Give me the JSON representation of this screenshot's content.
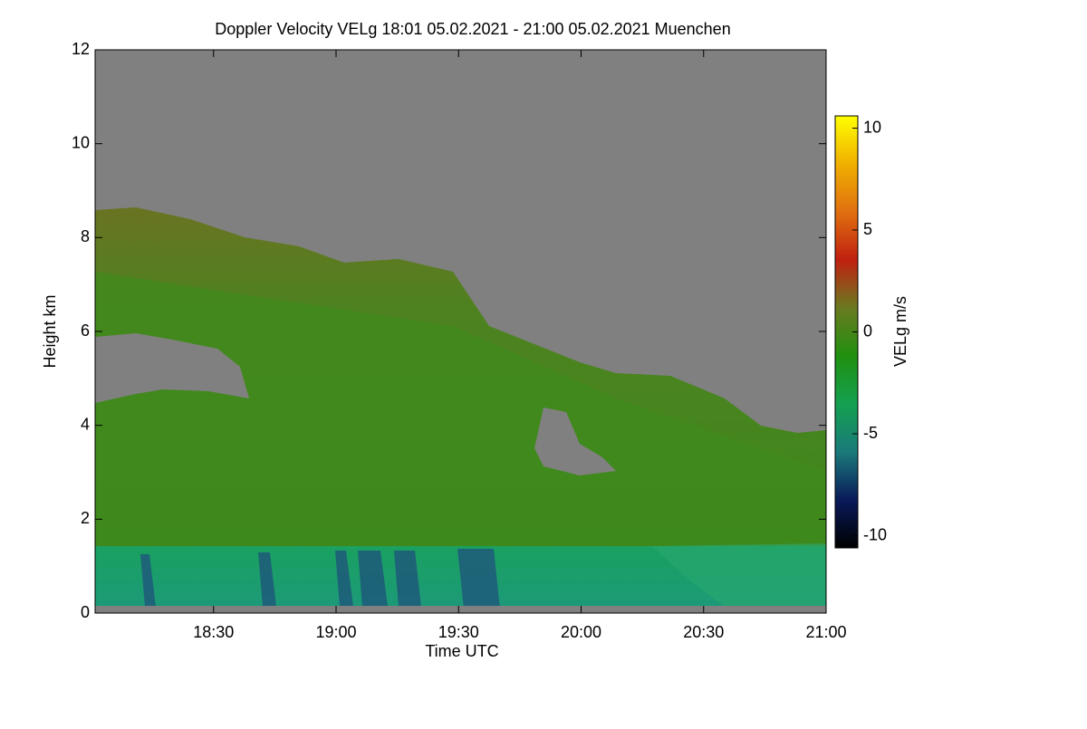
{
  "chart_data": {
    "type": "heatmap",
    "title": "Doppler Velocity VELg   18:01 05.02.2021 - 21:00 05.02.2021 Muenchen",
    "x_label": "Time UTC",
    "y_label": "Height km",
    "colorbar_label": "VELg m/s",
    "xlim": [
      "2021-02-05T18:01",
      "2021-02-05T21:00"
    ],
    "xticks": [
      {
        "value": "2021-02-05T18:30",
        "label": "18:30"
      },
      {
        "value": "2021-02-05T19:00",
        "label": "19:00"
      },
      {
        "value": "2021-02-05T19:30",
        "label": "19:30"
      },
      {
        "value": "2021-02-05T20:00",
        "label": "20:00"
      },
      {
        "value": "2021-02-05T20:30",
        "label": "20:30"
      },
      {
        "value": "2021-02-05T21:00",
        "label": "21:00"
      }
    ],
    "ylim": [
      0,
      12
    ],
    "yticks": [
      0,
      2,
      4,
      6,
      8,
      10,
      12
    ],
    "zlim": [
      -10.6,
      10.6
    ],
    "zticks": [
      -10,
      -5,
      0,
      5,
      10
    ],
    "colormap": [
      "#000000",
      "#0a1a5a",
      "#1a7a7a",
      "#14a050",
      "#209010",
      "#6a7a20",
      "#c02010",
      "#e07010",
      "#f0b000",
      "#ffff00"
    ]
  }
}
